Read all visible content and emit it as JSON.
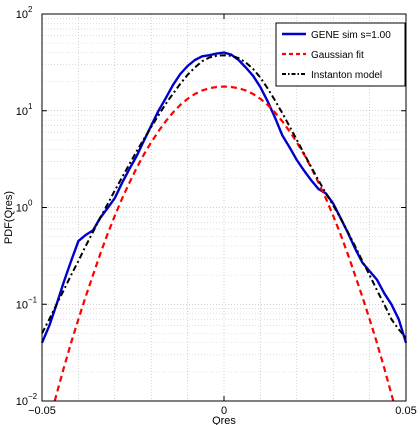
{
  "chart_data": {
    "type": "line",
    "title": "",
    "xlabel": "Qres",
    "ylabel": "PDF(Qres)",
    "xlim": [
      -0.05,
      0.05
    ],
    "ylim": [
      0.01,
      100
    ],
    "yscale": "log",
    "grid": true,
    "legend_position": "top-right",
    "x_ticks": [
      {
        "value": -0.05,
        "label": "−0.05"
      },
      {
        "value": 0,
        "label": "0"
      },
      {
        "value": 0.05,
        "label": "0.05"
      }
    ],
    "y_ticks": [
      {
        "value": 0.01,
        "label": "10",
        "exp": "−2"
      },
      {
        "value": 0.1,
        "label": "10",
        "exp": "−1"
      },
      {
        "value": 1,
        "label": "10",
        "exp": "0"
      },
      {
        "value": 10,
        "label": "10",
        "exp": "1"
      },
      {
        "value": 100,
        "label": "10",
        "exp": "2"
      }
    ],
    "series": [
      {
        "name": "GENE sim s=1.00",
        "color": "#0000cc",
        "style": "solid",
        "x": [
          -0.05,
          -0.048,
          -0.046,
          -0.044,
          -0.042,
          -0.04,
          -0.038,
          -0.036,
          -0.034,
          -0.032,
          -0.03,
          -0.028,
          -0.026,
          -0.024,
          -0.022,
          -0.02,
          -0.018,
          -0.016,
          -0.014,
          -0.012,
          -0.01,
          -0.008,
          -0.006,
          -0.004,
          -0.002,
          0,
          0.002,
          0.004,
          0.006,
          0.008,
          0.01,
          0.012,
          0.014,
          0.016,
          0.018,
          0.02,
          0.022,
          0.024,
          0.026,
          0.028,
          0.03,
          0.032,
          0.034,
          0.036,
          0.038,
          0.04,
          0.042,
          0.044,
          0.046,
          0.048,
          0.05
        ],
        "values": [
          0.04,
          0.06,
          0.1,
          0.17,
          0.28,
          0.45,
          0.52,
          0.58,
          0.78,
          0.98,
          1.25,
          1.8,
          2.5,
          3.4,
          4.9,
          7.0,
          10.0,
          13.5,
          18.5,
          24.0,
          29.0,
          33.5,
          36.5,
          37.5,
          39.0,
          40.0,
          38.0,
          33.5,
          28.0,
          23.0,
          17.5,
          12.5,
          8.5,
          5.6,
          4.2,
          3.1,
          2.4,
          1.9,
          1.55,
          1.4,
          1.1,
          0.78,
          0.55,
          0.38,
          0.27,
          0.22,
          0.18,
          0.13,
          0.1,
          0.07,
          0.04
        ]
      },
      {
        "name": "Gaussian fit",
        "color": "#ff0000",
        "style": "dashed",
        "x": [
          -0.0465,
          -0.044,
          -0.042,
          -0.04,
          -0.038,
          -0.036,
          -0.034,
          -0.032,
          -0.03,
          -0.028,
          -0.026,
          -0.024,
          -0.022,
          -0.02,
          -0.018,
          -0.016,
          -0.014,
          -0.012,
          -0.01,
          -0.008,
          -0.006,
          -0.004,
          -0.002,
          0,
          0.002,
          0.004,
          0.006,
          0.008,
          0.01,
          0.012,
          0.014,
          0.016,
          0.018,
          0.02,
          0.022,
          0.024,
          0.026,
          0.028,
          0.03,
          0.032,
          0.034,
          0.036,
          0.038,
          0.04,
          0.042,
          0.044,
          0.0465
        ],
        "values": [
          0.01,
          0.022,
          0.04,
          0.07,
          0.12,
          0.2,
          0.33,
          0.53,
          0.82,
          1.24,
          1.8,
          2.56,
          3.53,
          4.72,
          6.15,
          7.8,
          9.6,
          11.5,
          13.3,
          14.9,
          16.2,
          17.1,
          17.6,
          17.8,
          17.6,
          17.1,
          16.2,
          14.9,
          13.3,
          11.5,
          9.6,
          7.8,
          6.15,
          4.72,
          3.53,
          2.56,
          1.8,
          1.24,
          0.82,
          0.53,
          0.33,
          0.2,
          0.12,
          0.07,
          0.04,
          0.022,
          0.01
        ]
      },
      {
        "name": "Instanton model",
        "color": "#000000",
        "style": "dashdot",
        "x": [
          -0.05,
          -0.048,
          -0.046,
          -0.044,
          -0.042,
          -0.04,
          -0.038,
          -0.036,
          -0.034,
          -0.032,
          -0.03,
          -0.028,
          -0.026,
          -0.024,
          -0.022,
          -0.02,
          -0.018,
          -0.016,
          -0.014,
          -0.012,
          -0.01,
          -0.008,
          -0.006,
          -0.004,
          -0.002,
          0,
          0.002,
          0.004,
          0.006,
          0.008,
          0.01,
          0.012,
          0.014,
          0.016,
          0.018,
          0.02,
          0.022,
          0.024,
          0.026,
          0.028,
          0.03,
          0.032,
          0.034,
          0.036,
          0.038,
          0.04,
          0.042,
          0.044,
          0.046,
          0.048,
          0.05
        ],
        "values": [
          0.05,
          0.07,
          0.1,
          0.14,
          0.2,
          0.28,
          0.4,
          0.56,
          0.78,
          1.08,
          1.5,
          2.05,
          2.8,
          3.8,
          5.1,
          6.8,
          9.0,
          11.8,
          15.0,
          19.0,
          23.5,
          28.0,
          32.5,
          35.5,
          37.0,
          37.5,
          37.0,
          35.0,
          31.5,
          27.0,
          22.0,
          17.0,
          12.8,
          9.5,
          6.9,
          5.0,
          3.6,
          2.6,
          1.9,
          1.4,
          1.05,
          0.78,
          0.56,
          0.4,
          0.28,
          0.2,
          0.14,
          0.1,
          0.07,
          0.055,
          0.045
        ]
      }
    ]
  }
}
